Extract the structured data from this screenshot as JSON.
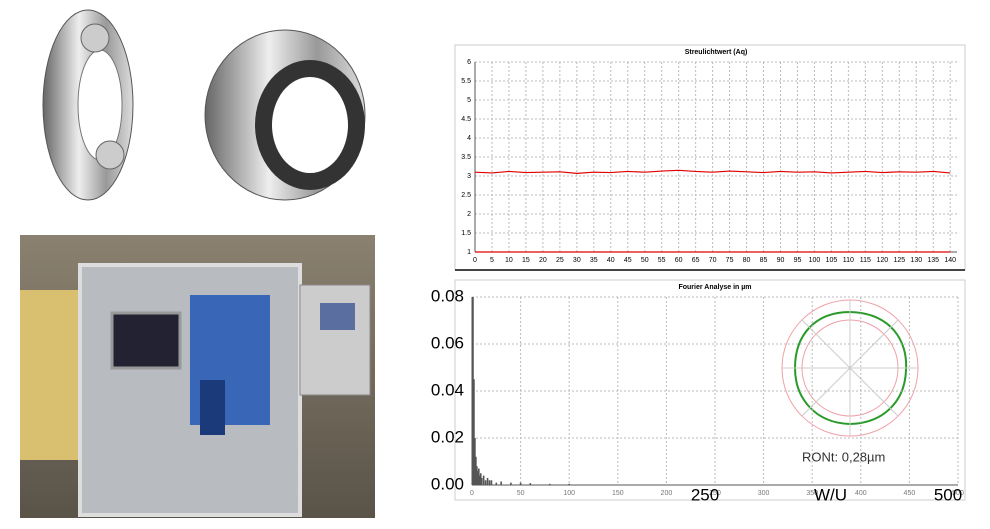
{
  "chart_data": [
    {
      "type": "line",
      "title": "Streulichtwert (Aq)",
      "x": [
        0,
        5,
        10,
        15,
        20,
        25,
        30,
        35,
        40,
        45,
        50,
        55,
        60,
        65,
        70,
        75,
        80,
        85,
        90,
        95,
        100,
        105,
        110,
        115,
        120,
        125,
        130,
        135,
        140
      ],
      "series": [
        {
          "color": "#e00000",
          "values": [
            3.1,
            3.08,
            3.12,
            3.09,
            3.1,
            3.11,
            3.07,
            3.1,
            3.09,
            3.12,
            3.1,
            3.13,
            3.15,
            3.12,
            3.1,
            3.13,
            3.11,
            3.09,
            3.12,
            3.1,
            3.11,
            3.08,
            3.1,
            3.12,
            3.09,
            3.11,
            3.1,
            3.12,
            3.08
          ]
        },
        {
          "color": "#e00000",
          "values": [
            1,
            1,
            1,
            1,
            1,
            1,
            1,
            1,
            1,
            1,
            1,
            1,
            1,
            1,
            1,
            1,
            1,
            1,
            1,
            1,
            1,
            1,
            1,
            1,
            1,
            1,
            1,
            1,
            1
          ]
        }
      ],
      "xlim": [
        0,
        142
      ],
      "ylim": [
        1,
        6
      ],
      "xticks": [
        0,
        5,
        10,
        15,
        20,
        25,
        30,
        35,
        40,
        45,
        50,
        55,
        60,
        65,
        70,
        75,
        80,
        85,
        90,
        95,
        100,
        105,
        110,
        115,
        120,
        125,
        130,
        135,
        140
      ],
      "yticks": [
        1,
        1.5,
        2,
        2.5,
        3,
        3.5,
        4,
        4.5,
        5,
        5.5,
        6
      ],
      "grid": true
    },
    {
      "type": "bar",
      "title": "Fourier Analyse in µm",
      "x": [
        1,
        2,
        3,
        4,
        5,
        6,
        7,
        8,
        9,
        10,
        12,
        14,
        16,
        18,
        20,
        25,
        30,
        40,
        50,
        60,
        80,
        100
      ],
      "values": [
        0.08,
        0.045,
        0.02,
        0.012,
        0.008,
        0.006,
        0.007,
        0.004,
        0.005,
        0.003,
        0.004,
        0.002,
        0.003,
        0.002,
        0.002,
        0.001,
        0.0015,
        0.001,
        0.001,
        0.0008,
        0.0005,
        0.0005
      ],
      "color": "#555555",
      "xlim": [
        0,
        500
      ],
      "ylim": [
        0,
        0.08
      ],
      "xticks": [
        0,
        50,
        100,
        150,
        200,
        250,
        300,
        350,
        400,
        450,
        500
      ],
      "xticks_large": [
        250,
        500
      ],
      "x_axis_label": "W/U",
      "yticks": [
        {
          "value": 0,
          "label": "0.00"
        },
        {
          "value": 0.02,
          "label": "0.02"
        },
        {
          "value": 0.04,
          "label": "0.04"
        },
        {
          "value": 0.06,
          "label": "0.06"
        },
        {
          "value": 0.08,
          "label": "0.08"
        }
      ],
      "annotation": "RONt: 0,28µm",
      "grid": true
    }
  ]
}
